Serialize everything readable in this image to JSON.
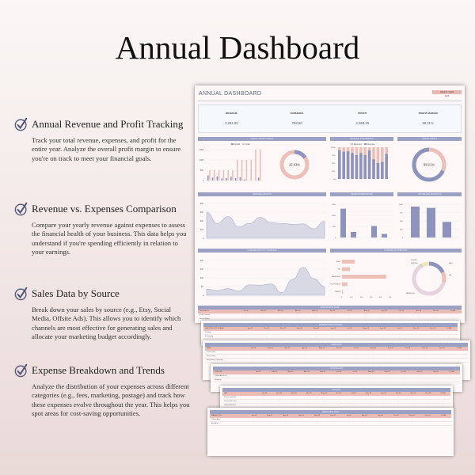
{
  "page": {
    "title": "Annual Dashboard"
  },
  "features": [
    {
      "icon": "check-circle-icon",
      "heading": "Annual Revenue and Profit Tracking",
      "description": "Track your total revenue, expenses, and profit for the entire year. Analyze the overall profit margin to ensure you're on track to meet your financial goals."
    },
    {
      "icon": "check-circle-icon",
      "heading": "Revenue vs. Expenses Comparison",
      "description": "Compare your yearly revenue against expenses to assess the financial health of your business. This data helps you understand if you're spending efficiently in relation to your earnings."
    },
    {
      "icon": "check-circle-icon",
      "heading": "Sales Data by Source",
      "description": "Break down your sales by source (e.g., Etsy, Social Media, Offsite Ads). This allows you to identify which channels are most effective for generating sales and allocate your marketing budget accordingly."
    },
    {
      "icon": "check-circle-icon",
      "heading": "Expense Breakdown and Trends",
      "description": "Analyze the distribution of your expenses across different categories (e.g., fees, marketing, postage) and track how these expenses evolve throughout the year. This helps you spot areas for cost-saving opportunities."
    }
  ],
  "dashboard": {
    "title": "ANNUAL DASHBOARD",
    "select_year_label": "SELECT YEAR",
    "select_year_value": "2024",
    "kpis": [
      {
        "label": "REVENUE",
        "value": "2,292.00"
      },
      {
        "label": "EXPENSES",
        "value": "728.60"
      },
      {
        "label": "PROFIT",
        "value": "1,563.40"
      },
      {
        "label": "PROFIT MARGIN",
        "value": "68.21%"
      }
    ],
    "panels": {
      "profit_target": "ANNUAL PROFIT TARGET",
      "rev_vs_exp": "REVENUE VS EXPENSES",
      "annual_profit": "ANNUAL PROFIT",
      "revenue_growth": "REVENUE GROWTH",
      "revenue_breakdown": "REVENUE BREAKDOWN",
      "top_products": "TOP SELLING PRODUCTS",
      "expense_overview": "EXPENSE MONTHLY OVERVIEW",
      "expense_distribution": "EXPENSE DISTRIBUTION"
    },
    "profit_target_donut_label": "15.63%",
    "annual_profit_donut_label": "68.21%",
    "legend_actual": "Actual",
    "legend_goal": "Goal",
    "legend_expenses": "Expenses",
    "legend_revenue": "Revenue"
  },
  "tables": [
    {
      "title": "SALE SOURCE DATA",
      "first_col": "Sale Source",
      "rows": [
        "ETSY Search",
        "Social Media"
      ]
    },
    {
      "title": "SHIPPING AND POSTAGE",
      "first_col": "SHIPPING & POSTAGE",
      "rows": [
        "Postage",
        "Packaging"
      ]
    },
    {
      "title": "FEES DATA",
      "first_col": "FEES",
      "rows": [
        "Transaction",
        "Processing",
        "Regulatory Operating"
      ]
    },
    {
      "title": "OFFSITE DATA",
      "first_col": "OFFSITE",
      "rows": [
        "Offsite Ads Fee",
        "Shipping"
      ]
    },
    {
      "title": "VAT DATA",
      "first_col": "VAT",
      "rows": [
        "Processing Fee",
        "Transaction Fee",
        "Offsite Ads Fee",
        "Listing Fee"
      ]
    },
    {
      "title": "MARKETING DATA",
      "first_col": "MARKETING",
      "rows": [
        "Offsite Ads",
        "Etsy Ads"
      ]
    }
  ],
  "table_months": [
    "Jan-24",
    "Feb-24",
    "Mar-24",
    "Apr-24",
    "May-24",
    "Jun-24",
    "Jul-24",
    "Aug-24",
    "Sep-24",
    "Oct-24",
    "Nov-24",
    "Dec-24",
    "TOTAL"
  ],
  "colors": {
    "accent_blue": "#9aa1c3",
    "accent_pink": "#ebbcb6",
    "donut_blue": "#8c94bd",
    "donut_pink": "#ecc0b9",
    "title_text": "#5a6a85"
  },
  "chart_data": [
    {
      "type": "bar",
      "title": "ANNUAL PROFIT TARGET",
      "categories": [
        "Jan",
        "Feb",
        "Mar",
        "Apr",
        "May",
        "Jun",
        "Jul",
        "Aug",
        "Sep",
        "Oct",
        "Nov",
        "Dec"
      ],
      "series": [
        {
          "name": "Actual",
          "values": [
            250,
            150,
            200,
            100,
            120,
            180,
            120,
            160,
            50,
            0,
            0,
            140
          ]
        },
        {
          "name": "Goal",
          "values": [
            500,
            500,
            500,
            500,
            500,
            500,
            1000,
            1000,
            1000,
            1000,
            1500,
            1500
          ]
        }
      ],
      "ylim": [
        0,
        1500
      ]
    },
    {
      "type": "pie",
      "title": "ANNUAL PROFIT TARGET (donut)",
      "values": [
        15.63,
        84.37
      ],
      "labels": [
        "Achieved",
        "Remaining"
      ]
    },
    {
      "type": "bar",
      "title": "REVENUE VS EXPENSES",
      "categories": [
        "Jan",
        "Feb",
        "Mar",
        "Apr",
        "May",
        "Jun",
        "Jul",
        "Aug",
        "Sep",
        "Oct",
        "Nov",
        "Dec"
      ],
      "series": [
        {
          "name": "Revenue",
          "values": [
            90,
            86,
            87,
            82,
            75,
            82,
            75,
            90,
            62,
            50,
            54,
            79
          ]
        },
        {
          "name": "Expenses",
          "values": [
            10,
            14,
            13,
            18,
            25,
            18,
            25,
            10,
            38,
            50,
            46,
            21
          ]
        }
      ],
      "ylabel": "%",
      "ylim": [
        0,
        100
      ]
    },
    {
      "type": "pie",
      "title": "ANNUAL PROFIT",
      "values": [
        68.21,
        31.79
      ],
      "labels": [
        "Profit",
        "Expenses"
      ]
    },
    {
      "type": "area",
      "title": "REVENUE GROWTH",
      "x": [
        "Jan",
        "Feb",
        "Mar",
        "Apr",
        "May",
        "Jun",
        "Jul",
        "Aug",
        "Sep",
        "Oct",
        "Nov",
        "Dec"
      ],
      "values": [
        300,
        170,
        250,
        130,
        170,
        240,
        180,
        170,
        160,
        165,
        110,
        195
      ],
      "ylim": [
        0,
        400
      ]
    },
    {
      "type": "bar",
      "title": "REVENUE BREAKDOWN",
      "categories": [
        "ETSY Search",
        "Social Media",
        "Direct Traffic",
        "Offsite Ads",
        "Etsy Ads"
      ],
      "values": [
        1300,
        250,
        0,
        520,
        160
      ],
      "ylim": [
        0,
        1500
      ]
    },
    {
      "type": "bar",
      "title": "TOP SELLING PRODUCTS",
      "categories": [
        "Product A",
        "Product B",
        "Product C"
      ],
      "values": [
        930,
        890,
        470
      ],
      "ylim": [
        0,
        1000
      ]
    },
    {
      "type": "area",
      "title": "EXPENSE MONTHLY OVERVIEW",
      "x": [
        "Jan",
        "Feb",
        "Mar",
        "Apr",
        "May",
        "Jun",
        "Jul",
        "Aug",
        "Sep",
        "Oct",
        "Nov",
        "Dec"
      ],
      "values": [
        35,
        28,
        38,
        25,
        60,
        58,
        65,
        15,
        90,
        160,
        95,
        50
      ],
      "ylim": [
        0,
        200
      ]
    },
    {
      "type": "bar",
      "title": "EXPENSE DISTRIBUTION",
      "categories": [
        "FEES",
        "VAT",
        "MARKETING",
        "SHIPPING & POSTAGE",
        "OTHERS"
      ],
      "values": [
        130,
        80,
        450,
        55,
        10
      ],
      "xlim": [
        0,
        500
      ]
    },
    {
      "type": "pie",
      "title": "EXPENSE DISTRIBUTION (donut)",
      "labels": [
        "FEES",
        "VAT",
        "MARKETING",
        "SHIPPING & POSTAGE",
        "OTHERS"
      ],
      "values": [
        18,
        11,
        62,
        8,
        1
      ]
    }
  ]
}
